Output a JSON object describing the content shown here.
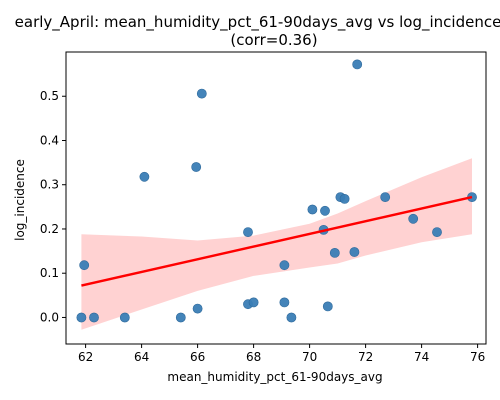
{
  "chart_data": {
    "type": "scatter",
    "title": "early_April: mean_humidity_pct_61-90days_avg vs log_incidence",
    "subtitle": "(corr=0.36)",
    "xlabel": "mean_humidity_pct_61-90days_avg",
    "ylabel": "log_incidence",
    "xlim": [
      61.3,
      76.3
    ],
    "ylim": [
      -0.06,
      0.6
    ],
    "xticks": [
      62,
      64,
      66,
      68,
      70,
      72,
      74,
      76
    ],
    "yticks": [
      0.0,
      0.1,
      0.2,
      0.3,
      0.4,
      0.5
    ],
    "xtick_labels": [
      "62",
      "64",
      "66",
      "68",
      "70",
      "72",
      "74",
      "76"
    ],
    "ytick_labels": [
      "0.0",
      "0.1",
      "0.2",
      "0.3",
      "0.4",
      "0.5"
    ],
    "grid": false,
    "points": [
      {
        "x": 61.85,
        "y": 0.0
      },
      {
        "x": 61.95,
        "y": 0.118
      },
      {
        "x": 62.3,
        "y": 0.0
      },
      {
        "x": 63.4,
        "y": 0.0
      },
      {
        "x": 64.1,
        "y": 0.318
      },
      {
        "x": 65.4,
        "y": 0.0
      },
      {
        "x": 65.95,
        "y": 0.34
      },
      {
        "x": 66.0,
        "y": 0.02
      },
      {
        "x": 66.15,
        "y": 0.506
      },
      {
        "x": 67.8,
        "y": 0.193
      },
      {
        "x": 67.8,
        "y": 0.03
      },
      {
        "x": 68.0,
        "y": 0.034
      },
      {
        "x": 69.1,
        "y": 0.034
      },
      {
        "x": 69.1,
        "y": 0.118
      },
      {
        "x": 69.35,
        "y": 0.0
      },
      {
        "x": 70.1,
        "y": 0.244
      },
      {
        "x": 70.5,
        "y": 0.198
      },
      {
        "x": 70.55,
        "y": 0.241
      },
      {
        "x": 70.65,
        "y": 0.025
      },
      {
        "x": 70.9,
        "y": 0.146
      },
      {
        "x": 71.1,
        "y": 0.272
      },
      {
        "x": 71.25,
        "y": 0.268
      },
      {
        "x": 71.6,
        "y": 0.148
      },
      {
        "x": 71.7,
        "y": 0.572
      },
      {
        "x": 72.7,
        "y": 0.272
      },
      {
        "x": 73.7,
        "y": 0.223
      },
      {
        "x": 74.55,
        "y": 0.193
      },
      {
        "x": 75.8,
        "y": 0.272
      }
    ],
    "regression": {
      "x": [
        61.85,
        75.8
      ],
      "y": [
        0.072,
        0.272
      ]
    },
    "confidence_band": {
      "x": [
        61.85,
        64.0,
        66.0,
        68.0,
        70.0,
        71.0,
        72.0,
        74.0,
        75.8
      ],
      "upper": [
        0.188,
        0.183,
        0.174,
        0.185,
        0.212,
        0.235,
        0.263,
        0.317,
        0.36
      ],
      "lower": [
        -0.028,
        0.018,
        0.06,
        0.094,
        0.113,
        0.122,
        0.14,
        0.17,
        0.188
      ]
    },
    "colors": {
      "points": "#3a7db5",
      "regression": "#ff0000",
      "band": "#ffd2d2"
    }
  }
}
